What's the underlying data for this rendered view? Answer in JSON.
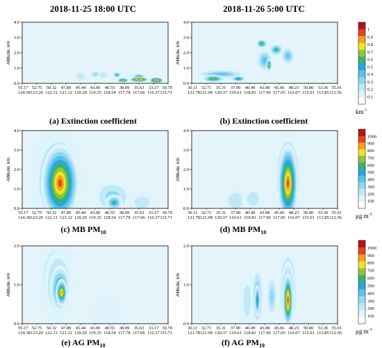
{
  "chart_data": [
    {
      "id": "a",
      "type": "heatmap",
      "title": "2018-11-25 18:00 UTC",
      "caption": "(a) Extinction coefficient",
      "ylabel": "Altitude, km",
      "ylim": [
        0,
        4.0
      ],
      "yticks": [
        "0.0",
        "1.0",
        "2.0",
        "3.0",
        "4.0"
      ],
      "xticks_top": [
        "55.17",
        "52.75",
        "50.32",
        "47.89",
        "45.44",
        "43.00",
        "40.55",
        "38.09",
        "35.63",
        "33.17",
        "30.70"
      ],
      "xticks_bottom": [
        "124.38",
        "123.20",
        "122.11",
        "121.12",
        "120.20",
        "119.35",
        "118.54",
        "117.78",
        "117.06",
        "116.37",
        "115.71"
      ],
      "colorbar": "extinction",
      "blobs": [
        {
          "x": 0.4,
          "y": 0.45,
          "rx": 0.05,
          "ry": 0.35,
          "level": 0.15
        },
        {
          "x": 0.55,
          "y": 0.55,
          "rx": 0.05,
          "ry": 0.35,
          "level": 0.15
        },
        {
          "x": 0.72,
          "y": 0.6,
          "rx": 0.06,
          "ry": 0.3,
          "level": 0.12
        },
        {
          "x": 0.5,
          "y": 0.6,
          "rx": 0.04,
          "ry": 0.25,
          "level": 0.3
        },
        {
          "x": 0.65,
          "y": 0.55,
          "rx": 0.03,
          "ry": 0.2,
          "level": 0.45
        },
        {
          "x": 0.8,
          "y": 0.45,
          "rx": 0.05,
          "ry": 0.2,
          "level": 0.5
        },
        {
          "x": 0.8,
          "y": 0.25,
          "rx": 0.07,
          "ry": 0.18,
          "level": 0.9
        },
        {
          "x": 0.92,
          "y": 0.2,
          "rx": 0.05,
          "ry": 0.2,
          "level": 0.95
        },
        {
          "x": 0.69,
          "y": 0.2,
          "rx": 0.04,
          "ry": 0.15,
          "level": 0.85
        }
      ]
    },
    {
      "id": "b",
      "type": "heatmap",
      "title": "2018-11-26 5:00 UTC",
      "caption": "(b) Extinction coefficient",
      "ylabel": "Altitude, km",
      "ylim": [
        0,
        4.0
      ],
      "yticks": [
        "0.0",
        "1.0",
        "2.0",
        "3.0",
        "4.0"
      ],
      "xticks_top": [
        "30.11",
        "32.71",
        "35.31",
        "37.90",
        "40.49",
        "43.08",
        "45.66",
        "48.23",
        "50.80",
        "53.36",
        "55.91"
      ],
      "xticks_bottom": [
        "121.78",
        "121.09",
        "120.37",
        "119.61",
        "118.81",
        "117.96",
        "117.05",
        "116.07",
        "115.01",
        "113.85",
        "112.56"
      ],
      "colorbar": "extinction",
      "blobs": [
        {
          "x": 0.2,
          "y": 0.6,
          "rx": 0.18,
          "ry": 0.3,
          "level": 0.35
        },
        {
          "x": 0.15,
          "y": 0.3,
          "rx": 0.08,
          "ry": 0.25,
          "level": 0.6
        },
        {
          "x": 0.32,
          "y": 0.3,
          "rx": 0.05,
          "ry": 0.2,
          "level": 0.55
        },
        {
          "x": 0.5,
          "y": 1.5,
          "rx": 0.06,
          "ry": 0.8,
          "level": 0.4
        },
        {
          "x": 0.58,
          "y": 2.2,
          "rx": 0.05,
          "ry": 0.4,
          "level": 0.5
        },
        {
          "x": 0.48,
          "y": 2.6,
          "rx": 0.04,
          "ry": 0.3,
          "level": 0.6
        },
        {
          "x": 0.66,
          "y": 1.8,
          "rx": 0.05,
          "ry": 0.6,
          "level": 0.35
        },
        {
          "x": 0.53,
          "y": 1.2,
          "rx": 0.02,
          "ry": 0.4,
          "level": 0.7
        }
      ]
    },
    {
      "id": "c",
      "type": "heatmap",
      "caption": "(c) MB PM10",
      "ylabel": "Altitude, km",
      "ylim": [
        0,
        4.0
      ],
      "yticks": [
        "0.0",
        "1.0",
        "2.0",
        "3.0",
        "4.0"
      ],
      "xticks_top": [
        "55.17",
        "52.75",
        "50.32",
        "47.89",
        "45.44",
        "43.00",
        "40.55",
        "38.09",
        "35.63",
        "33.17",
        "30.70"
      ],
      "xticks_bottom": [
        "124.38",
        "123.20",
        "122.11",
        "121.12",
        "120.20",
        "119.35",
        "118.54",
        "117.78",
        "117.06",
        "116.37",
        "115.71"
      ],
      "colorbar": "pm",
      "blobs": [
        {
          "x": 0.24,
          "y": 1.5,
          "rx": 0.2,
          "ry": 2.8,
          "level": 0.35
        },
        {
          "x": 0.25,
          "y": 1.4,
          "rx": 0.16,
          "ry": 2.4,
          "level": 0.6
        },
        {
          "x": 0.26,
          "y": 1.3,
          "rx": 0.13,
          "ry": 2.0,
          "level": 0.95
        },
        {
          "x": 0.62,
          "y": 0.6,
          "rx": 0.14,
          "ry": 0.9,
          "level": 0.25
        },
        {
          "x": 0.63,
          "y": 0.3,
          "rx": 0.06,
          "ry": 0.4,
          "level": 0.45
        },
        {
          "x": 0.82,
          "y": 0.3,
          "rx": 0.1,
          "ry": 0.6,
          "level": 0.2
        }
      ]
    },
    {
      "id": "d",
      "type": "heatmap",
      "caption": "(d) MB PM10",
      "ylabel": "Altitude, km",
      "ylim": [
        0,
        4.0
      ],
      "yticks": [
        "0.0",
        "1.0",
        "2.0",
        "3.0",
        "4.0"
      ],
      "xticks_top": [
        "30.11",
        "32.71",
        "35.31",
        "37.90",
        "40.49",
        "43.08",
        "45.66",
        "48.23",
        "50.80",
        "53.36",
        "55.91"
      ],
      "xticks_bottom": [
        "121.78",
        "121.09",
        "120.37",
        "119.61",
        "118.81",
        "117.96",
        "117.05",
        "116.07",
        "115.01",
        "113.85",
        "112.56"
      ],
      "colorbar": "pm",
      "blobs": [
        {
          "x": 0.3,
          "y": 0.4,
          "rx": 0.1,
          "ry": 0.8,
          "level": 0.15
        },
        {
          "x": 0.42,
          "y": 0.5,
          "rx": 0.08,
          "ry": 0.7,
          "level": 0.2
        },
        {
          "x": 0.66,
          "y": 1.7,
          "rx": 0.11,
          "ry": 2.6,
          "level": 0.35
        },
        {
          "x": 0.66,
          "y": 1.5,
          "rx": 0.09,
          "ry": 2.3,
          "level": 0.6
        },
        {
          "x": 0.66,
          "y": 1.3,
          "rx": 0.07,
          "ry": 2.0,
          "level": 0.95
        }
      ]
    },
    {
      "id": "e",
      "type": "heatmap",
      "caption": "(e) AG PM10",
      "ylabel": "Altitude, km",
      "ylim": [
        0,
        2.0
      ],
      "yticks": [
        "0.0",
        "1.0",
        "2.0"
      ],
      "xticks_top": [
        "55.17",
        "52.75",
        "50.32",
        "47.89",
        "45.44",
        "43.00",
        "40.55",
        "38.09",
        "35.63",
        "33.17",
        "30.70"
      ],
      "xticks_bottom": [
        "124.38",
        "123.20",
        "122.11",
        "121.12",
        "120.20",
        "119.35",
        "118.54",
        "117.78",
        "117.06",
        "116.37",
        "115.71"
      ],
      "colorbar": "pm",
      "blobs": [
        {
          "x": 0.24,
          "y": 1.1,
          "rx": 0.14,
          "ry": 1.2,
          "level": 0.25
        },
        {
          "x": 0.25,
          "y": 1.0,
          "rx": 0.1,
          "ry": 0.9,
          "level": 0.4
        },
        {
          "x": 0.26,
          "y": 0.9,
          "rx": 0.07,
          "ry": 0.6,
          "level": 0.6
        },
        {
          "x": 0.27,
          "y": 0.8,
          "rx": 0.04,
          "ry": 0.35,
          "level": 0.8
        },
        {
          "x": 0.58,
          "y": 0.3,
          "rx": 0.12,
          "ry": 0.5,
          "level": 0.12
        }
      ]
    },
    {
      "id": "f",
      "type": "heatmap",
      "caption": "(f) AG PM10",
      "ylabel": "Altitude, km",
      "ylim": [
        0,
        2.0
      ],
      "yticks": [
        "0.0",
        "1.0",
        "2.0"
      ],
      "xticks_top": [
        "30.11",
        "32.71",
        "35.31",
        "37.90",
        "40.49",
        "43.08",
        "45.66",
        "48.23",
        "50.80",
        "53.36",
        "55.91"
      ],
      "xticks_bottom": [
        "121.78",
        "121.09",
        "120.37",
        "119.61",
        "118.81",
        "117.96",
        "117.05",
        "116.07",
        "115.01",
        "113.85",
        "112.56"
      ],
      "colorbar": "pm",
      "blobs": [
        {
          "x": 0.38,
          "y": 0.6,
          "rx": 0.05,
          "ry": 0.8,
          "level": 0.2
        },
        {
          "x": 0.45,
          "y": 0.7,
          "rx": 0.04,
          "ry": 0.8,
          "level": 0.35
        },
        {
          "x": 0.45,
          "y": 0.6,
          "rx": 0.02,
          "ry": 0.4,
          "level": 0.55
        },
        {
          "x": 0.55,
          "y": 0.7,
          "rx": 0.04,
          "ry": 0.6,
          "level": 0.3
        },
        {
          "x": 0.66,
          "y": 0.8,
          "rx": 0.07,
          "ry": 1.2,
          "level": 0.35
        },
        {
          "x": 0.66,
          "y": 0.7,
          "rx": 0.05,
          "ry": 0.9,
          "level": 0.6
        },
        {
          "x": 0.66,
          "y": 0.6,
          "rx": 0.035,
          "ry": 0.7,
          "level": 0.9
        }
      ]
    }
  ],
  "colorbars": {
    "extinction": {
      "ticks": [
        "0.1",
        "0.2",
        "0.3",
        "0.4",
        "0.5",
        "0.6",
        "0.7",
        "0.8",
        "0.9",
        "1"
      ],
      "unit": "km",
      "unit_sup": "-1"
    },
    "pm": {
      "ticks": [
        "100",
        "200",
        "300",
        "400",
        "500",
        "600",
        "700",
        "800",
        "900",
        "1000"
      ],
      "unit": "μg m",
      "unit_sup": "-3"
    }
  },
  "colors": {
    "ramp": [
      "#ffffff",
      "#dff4fb",
      "#bfe9f7",
      "#8fd8f1",
      "#5bc3ea",
      "#2aa5dd",
      "#3bb36e",
      "#8cc63f",
      "#f3e41d",
      "#f7a21b",
      "#e8431d",
      "#b3141d"
    ]
  }
}
